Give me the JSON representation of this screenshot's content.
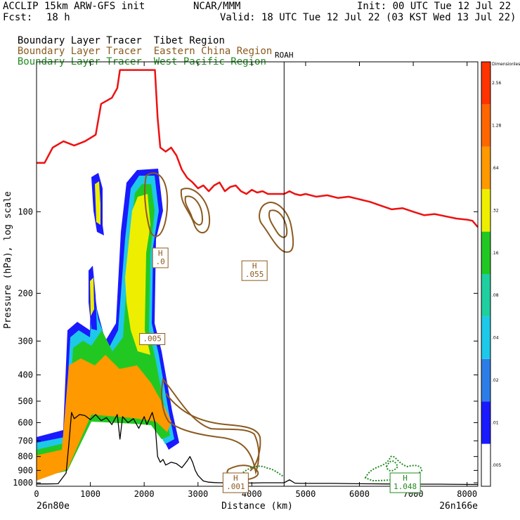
{
  "header": {
    "title_left": "ACCLIP 15km ARW-GFS init",
    "center": "NCAR/MMM",
    "init": "Init: 00 UTC Tue 12 Jul 22",
    "fcst_label": "Fcst:",
    "fcst_value": "18 h",
    "valid": "Valid: 18 UTC Tue 12 Jul 22 (03 KST Wed 13 Jul 22)"
  },
  "legend": [
    {
      "tracer": "Boundary Layer Tracer",
      "region": "Tibet Region",
      "color": "#000000"
    },
    {
      "tracer": "Boundary Layer Tracer",
      "region": "Eastern China Region",
      "color": "#8b5a1f"
    },
    {
      "tracer": "Boundary Layer Tracer",
      "region": "West Pacific Region",
      "color": "#228b22"
    }
  ],
  "chart_data": {
    "type": "cross-section",
    "xlabel": "Distance (km)",
    "ylabel": "Pressure (hPa), log scale",
    "x_range": [
      0,
      8200
    ],
    "y_range_hpa": [
      1030,
      28
    ],
    "x_ticks": [
      0,
      1000,
      2000,
      3000,
      4000,
      5000,
      6000,
      7000,
      8000
    ],
    "y_ticks": [
      100,
      200,
      300,
      400,
      500,
      600,
      700,
      800,
      900,
      1000
    ],
    "left_endpoint": "26n80e",
    "right_endpoint": "26n166e",
    "marker": {
      "label": "ROAH",
      "x_km": 4600
    },
    "colorbar": {
      "levels": [
        ".005",
        ".01",
        ".02",
        ".04",
        ".08",
        ".16",
        ".32",
        ".64",
        "1.28",
        "2.56",
        "Dimensionless"
      ],
      "colors": [
        "#ffffff",
        "#1a1aff",
        "#2d7de8",
        "#1ec8e8",
        "#1fcfa0",
        "#22c822",
        "#eeee00",
        "#ff9900",
        "#ff6600",
        "#ff3300"
      ]
    },
    "annotations": [
      {
        "text": "H",
        "value": ".0",
        "x_km": 2300,
        "p_hpa": 148,
        "color": "#8b5a1f"
      },
      {
        "text": "H",
        "value": ".055",
        "x_km": 4050,
        "p_hpa": 165,
        "color": "#8b5a1f"
      },
      {
        "text": ".005",
        "x_km": 2150,
        "p_hpa": 295,
        "color": "#8b5a1f"
      },
      {
        "text": "H",
        "value": ".001",
        "x_km": 3700,
        "p_hpa": 1000,
        "color": "#8b5a1f"
      },
      {
        "text": "H",
        "value": "1.048",
        "x_km": 6850,
        "p_hpa": 1000,
        "color": "#228b22"
      }
    ],
    "tropopause": {
      "color": "#ee1111",
      "x_km": [
        0,
        150,
        300,
        500,
        700,
        900,
        1100,
        1200,
        1400,
        1500,
        1550,
        1650,
        1800,
        1900,
        2000,
        2050,
        2100,
        2150,
        2200,
        2250,
        2300,
        2400,
        2500,
        2600,
        2700,
        2800,
        2900,
        3000,
        3100,
        3200,
        3300,
        3400,
        3500,
        3600,
        3700,
        3800,
        3900,
        4000,
        4100,
        4200,
        4300,
        4400,
        4500,
        4600,
        4700,
        4800,
        4900,
        5000,
        5200,
        5400,
        5600,
        5800,
        6000,
        6200,
        6400,
        6600,
        6800,
        7000,
        7200,
        7400,
        7600,
        7800,
        8000,
        8100,
        8200
      ],
      "p_hpa": [
        66,
        66,
        58,
        55,
        57,
        55,
        52,
        40,
        38,
        35,
        30,
        30,
        30,
        30,
        30,
        30,
        30,
        30,
        30,
        45,
        58,
        60,
        58,
        62,
        70,
        75,
        78,
        82,
        80,
        84,
        80,
        78,
        84,
        81,
        80,
        84,
        86,
        83,
        85,
        84,
        86,
        86,
        86,
        86,
        84,
        86,
        87,
        86,
        88,
        87,
        89,
        88,
        90,
        92,
        95,
        98,
        97,
        100,
        103,
        102,
        104,
        106,
        107,
        108,
        114
      ]
    },
    "terrain": {
      "color": "#000000",
      "x_km": [
        0,
        200,
        400,
        550,
        600,
        650,
        700,
        800,
        900,
        1000,
        1100,
        1200,
        1300,
        1400,
        1500,
        1550,
        1600,
        1700,
        1800,
        1900,
        2000,
        2050,
        2100,
        2150,
        2200,
        2250,
        2300,
        2350,
        2400,
        2500,
        2600,
        2700,
        2800,
        2850,
        2900,
        2950,
        3000,
        3100,
        3200,
        3300,
        3400,
        3600,
        3800,
        4000,
        4200,
        4400,
        4600,
        4700,
        4800,
        4900,
        5000,
        5500,
        6000,
        6500,
        7000,
        7500,
        8000,
        8200
      ],
      "p_hpa": [
        1010,
        1010,
        1008,
        920,
        720,
        550,
        580,
        560,
        565,
        585,
        560,
        590,
        575,
        610,
        560,
        690,
        570,
        600,
        580,
        630,
        570,
        610,
        580,
        550,
        600,
        800,
        840,
        820,
        860,
        840,
        850,
        880,
        830,
        800,
        840,
        900,
        940,
        985,
        995,
        998,
        1000,
        1000,
        1000,
        1002,
        1000,
        1000,
        1000,
        975,
        1003,
        1005,
        1005,
        1005,
        1008,
        1010,
        1012,
        1012,
        1014,
        1015
      ]
    }
  }
}
